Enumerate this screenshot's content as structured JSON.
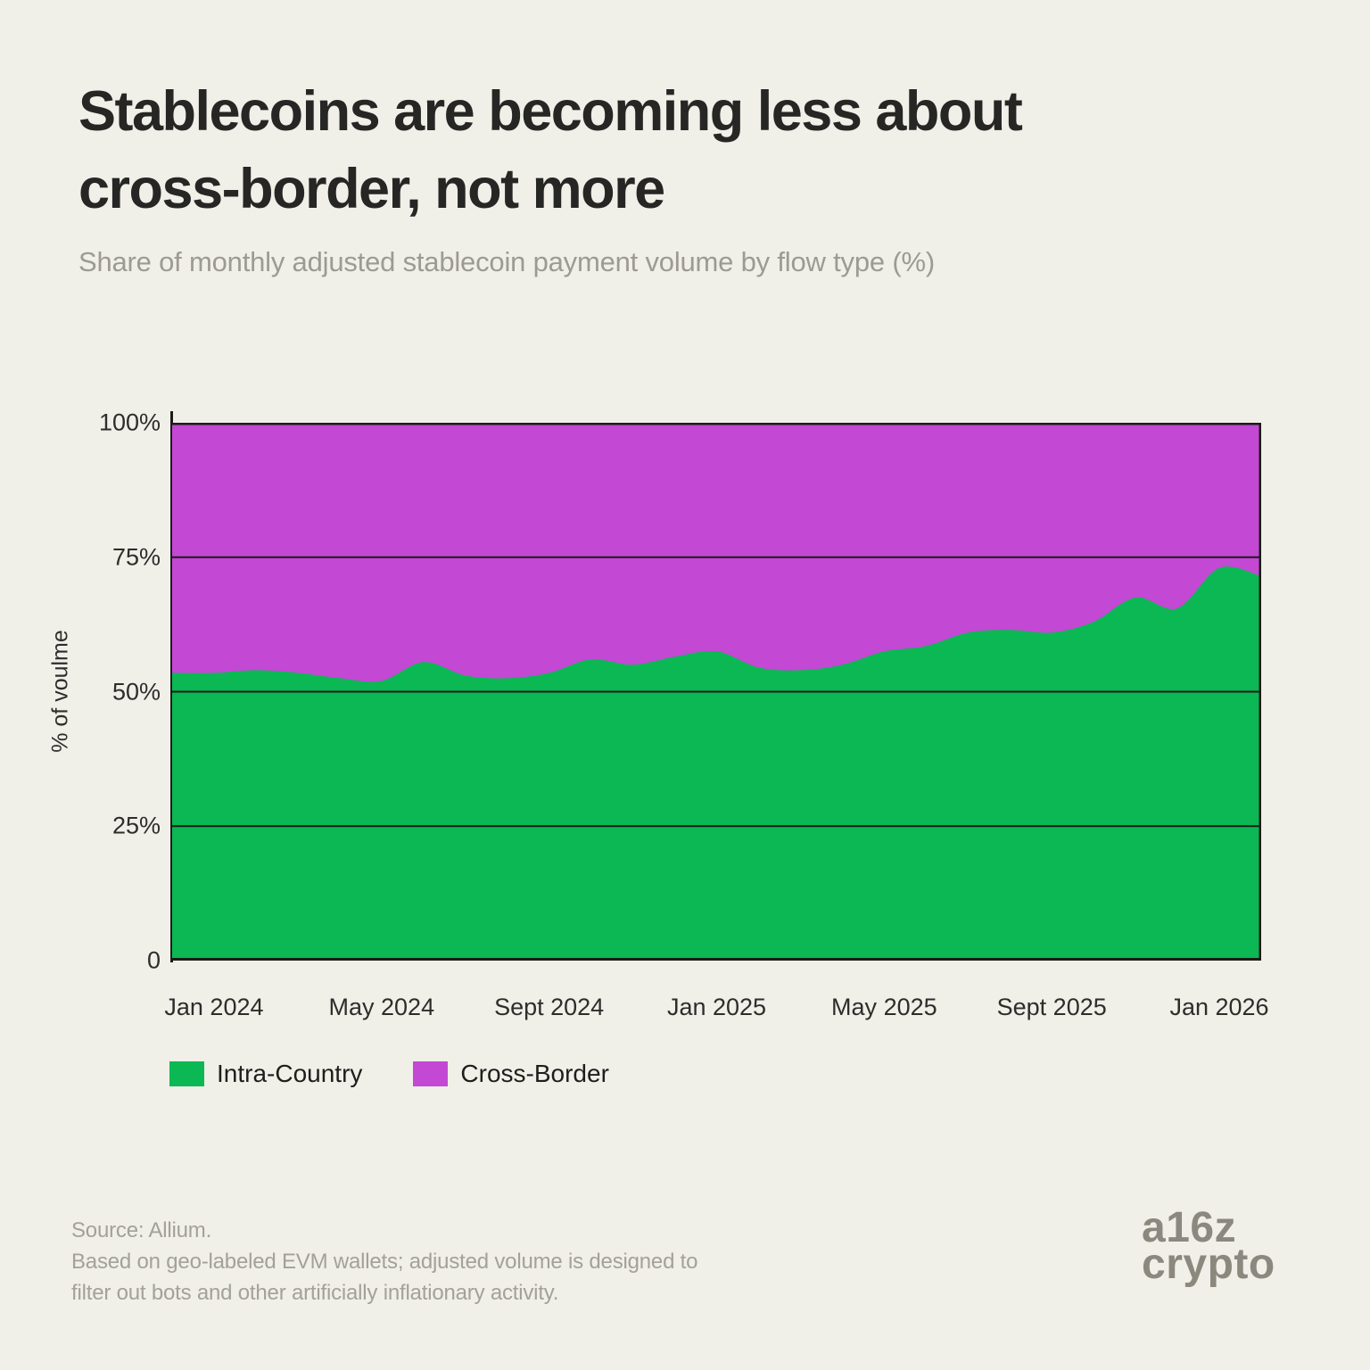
{
  "header": {
    "title_line1": "Stablecoins are becoming less about",
    "title_line2": "cross-border, not more",
    "subtitle": "Share of monthly adjusted stablecoin payment volume by flow type (%)"
  },
  "colors": {
    "background": "#f0efe8",
    "intra_country_green": "#0bb853",
    "cross_border_purple": "#c348d4",
    "axis_line": "#1b1b19",
    "tick_text": "#2d2d2b",
    "muted_text": "#a3a198"
  },
  "chart_data": {
    "type": "area",
    "stacked": true,
    "title": "Stablecoins are becoming less about cross-border, not more",
    "subtitle": "Share of monthly adjusted stablecoin payment volume by flow type (%)",
    "xlabel": "",
    "ylabel": "% of voulme",
    "ylim": [
      0,
      100
    ],
    "grid": true,
    "legend_position": "bottom-left",
    "x": [
      "Dec 2023",
      "Jan 2024",
      "Feb 2024",
      "Mar 2024",
      "Apr 2024",
      "May 2024",
      "Jun 2024",
      "Jul 2024",
      "Aug 2024",
      "Sep 2024",
      "Oct 2024",
      "Nov 2024",
      "Dec 2024",
      "Jan 2025",
      "Feb 2025",
      "Mar 2025",
      "Apr 2025",
      "May 2025",
      "Jun 2025",
      "Jul 2025",
      "Aug 2025",
      "Sep 2025",
      "Oct 2025",
      "Nov 2025",
      "Dec 2025",
      "Jan 2026",
      "Feb 2026"
    ],
    "series": [
      {
        "name": "Intra-Country",
        "color": "#0bb853",
        "values": [
          53.5,
          53.5,
          54,
          53.5,
          52.5,
          52,
          55.5,
          53,
          52.5,
          53.5,
          56,
          55,
          56.5,
          57.5,
          54.5,
          54,
          55,
          57.5,
          58.5,
          61,
          61.5,
          61,
          63,
          67.5,
          65.5,
          73,
          71.5
        ]
      },
      {
        "name": "Cross-Border",
        "color": "#c348d4",
        "values": [
          46.5,
          46.5,
          46,
          46.5,
          47.5,
          48,
          44.5,
          47,
          47.5,
          46.5,
          44,
          45,
          43.5,
          42.5,
          45.5,
          46,
          45,
          42.5,
          41.5,
          39,
          38.5,
          39,
          37,
          32.5,
          34.5,
          27,
          28.5
        ]
      }
    ],
    "y_ticks": [
      "100%",
      "75%",
      "50%",
      "25%",
      "0"
    ],
    "y_tick_values": [
      100,
      75,
      50,
      25,
      0
    ],
    "x_ticks": [
      "Jan 2024",
      "May 2024",
      "Sept 2024",
      "Jan 2025",
      "May 2025",
      "Sept 2025",
      "Jan 2026"
    ],
    "x_tick_indices": [
      1,
      5,
      9,
      13,
      17,
      21,
      25
    ]
  },
  "legend": {
    "items": [
      {
        "label": "Intra-Country",
        "color": "#0bb853"
      },
      {
        "label": "Cross-Border",
        "color": "#c348d4"
      }
    ]
  },
  "footer": {
    "source_line1": "Source: Allium.",
    "source_line2": "Based on geo-labeled EVM wallets; adjusted volume is designed to",
    "source_line3": "filter out bots and other artificially inflationary activity.",
    "logo_line1": "a16z",
    "logo_line2": "crypto"
  }
}
